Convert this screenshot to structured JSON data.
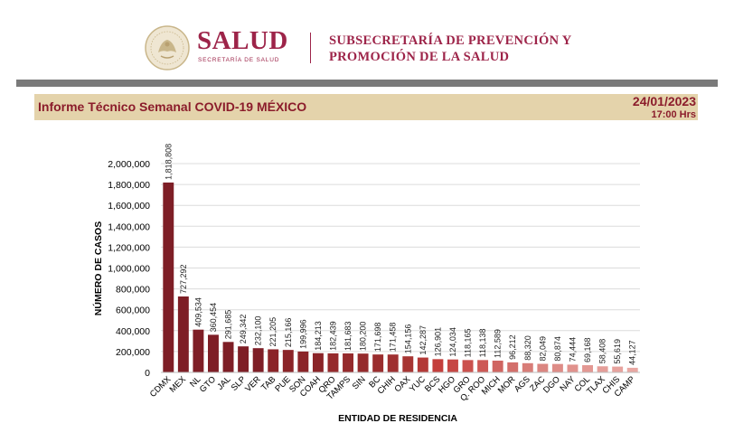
{
  "header": {
    "brand": "SALUD",
    "brand_sub": "SECRETARÍA DE SALUD",
    "subsecretaria_line1": "SUBSECRETARÍA DE PREVENCIÓN Y",
    "subsecretaria_line2": "PROMOCIÓN DE LA SALUD",
    "brand_color": "#9d2449"
  },
  "report": {
    "title": "Informe Técnico Semanal COVID-19 MÉXICO",
    "date": "24/01/2023",
    "time": "17:00 Hrs",
    "band_color": "#e4d3ab",
    "text_color": "#8b1c2b"
  },
  "chart_data": {
    "type": "bar",
    "xlabel": "ENTIDAD DE RESIDENCIA",
    "ylabel": "NÚMERO DE CASOS",
    "ylim": [
      0,
      2000000
    ],
    "yticks": [
      0,
      200000,
      400000,
      600000,
      800000,
      1000000,
      1200000,
      1400000,
      1600000,
      1800000,
      2000000
    ],
    "ytick_labels": [
      "0",
      "200,000",
      "400,000",
      "600,000",
      "800,000",
      "1,000,000",
      "1,200,000",
      "1,400,000",
      "1,600,000",
      "1,800,000",
      "2,000,000"
    ],
    "grid": true,
    "categories": [
      "CDMX",
      "MEX",
      "NL",
      "GTO",
      "JAL",
      "SLP",
      "VER",
      "TAB",
      "PUE",
      "SON",
      "COAH",
      "QRO",
      "TAMPS",
      "SIN",
      "BC",
      "CHIH",
      "OAX",
      "YUC",
      "BCS",
      "HGO",
      "GRO",
      "Q. ROO",
      "MICH",
      "MOR",
      "AGS",
      "ZAC",
      "DGO",
      "NAY",
      "COL",
      "TLAX",
      "CHIS",
      "CAMP"
    ],
    "values": [
      1818808,
      727292,
      409534,
      360454,
      291685,
      249342,
      232100,
      221205,
      215166,
      199996,
      184213,
      182439,
      181683,
      180200,
      171698,
      171458,
      154156,
      142287,
      126901,
      124034,
      118165,
      118138,
      112589,
      96212,
      88320,
      82049,
      80874,
      74444,
      69168,
      58408,
      55619,
      44127
    ],
    "value_labels": [
      "1,818,808",
      "727,292",
      "409,534",
      "360,454",
      "291,685",
      "249,342",
      "232,100",
      "221,205",
      "215,166",
      "199,996",
      "184,213",
      "182,439",
      "181,683",
      "180,200",
      "171,698",
      "171,458",
      "154,156",
      "142,287",
      "126,901",
      "124,034",
      "118,165",
      "118,138",
      "112,589",
      "96,212",
      "88,320",
      "82,049",
      "80,874",
      "74,444",
      "69,168",
      "58,408",
      "55,619",
      "44,127"
    ],
    "bar_colors": [
      "#7e1e26",
      "#7e1e26",
      "#7e1e26",
      "#7e1e26",
      "#7e1e26",
      "#7e1e26",
      "#7e1e26",
      "#8b2428",
      "#8b2428",
      "#8b2428",
      "#8b2428",
      "#952a2c",
      "#952a2c",
      "#952a2c",
      "#9a2d2e",
      "#9f3031",
      "#a73533",
      "#b33937",
      "#c43f3c",
      "#c64744",
      "#cb514d",
      "#cd5955",
      "#d06561",
      "#d36f6b",
      "#d87d78",
      "#db8681",
      "#de8c87",
      "#e1928d",
      "#e39893",
      "#e59e99",
      "#e7a39e",
      "#e9a8a3"
    ]
  }
}
